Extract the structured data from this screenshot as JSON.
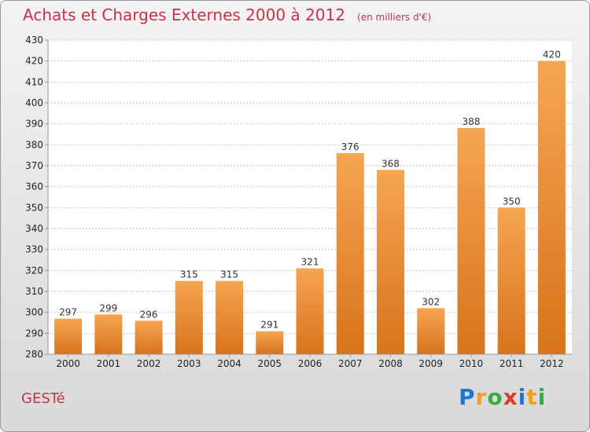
{
  "header": {
    "title": "Achats et Charges Externes 2000 à 2012",
    "subtitle": "(en milliers d'€)"
  },
  "footer": {
    "commune": "GESTé",
    "logo_letters": [
      {
        "char": "P",
        "color": "#1f77d0"
      },
      {
        "char": "r",
        "color": "#f0a020"
      },
      {
        "char": "o",
        "color": "#39a845"
      },
      {
        "char": "x",
        "color": "#e03a2a"
      },
      {
        "char": "i",
        "color": "#1f77d0"
      },
      {
        "char": "t",
        "color": "#f0a020"
      },
      {
        "char": "i",
        "color": "#39a845"
      }
    ]
  },
  "chart_data": {
    "type": "bar",
    "title": "Achats et Charges Externes 2000 à 2012",
    "subtitle": "(en milliers d'€)",
    "categories": [
      "2000",
      "2001",
      "2002",
      "2003",
      "2004",
      "2005",
      "2006",
      "2007",
      "2008",
      "2009",
      "2010",
      "2011",
      "2012"
    ],
    "values": [
      297,
      299,
      296,
      315,
      315,
      291,
      321,
      376,
      368,
      302,
      388,
      350,
      420
    ],
    "ylim": [
      280,
      430
    ],
    "yticks": [
      280,
      290,
      300,
      310,
      320,
      330,
      340,
      350,
      360,
      370,
      380,
      390,
      400,
      410,
      420,
      430
    ],
    "grid": true,
    "bar_color_top": "#f6a552",
    "bar_color_bottom": "#d8731c"
  }
}
